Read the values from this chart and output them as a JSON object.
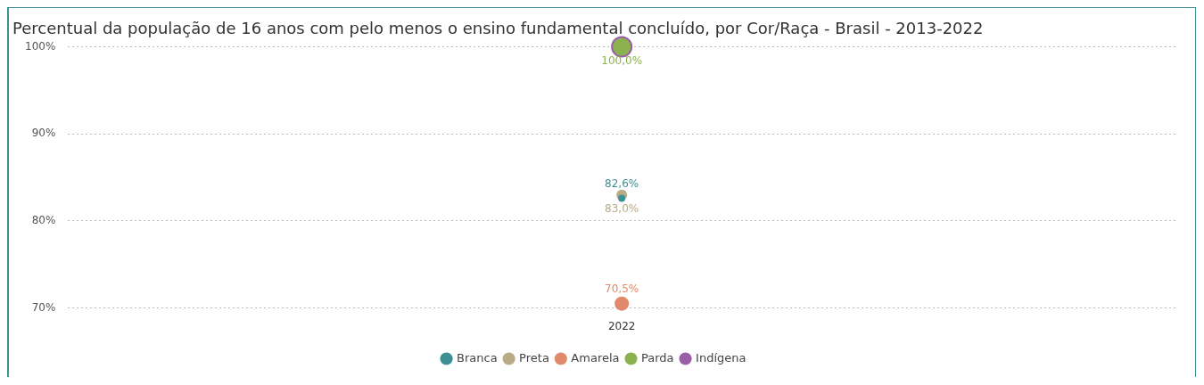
{
  "chart_data": {
    "type": "scatter",
    "title": "Percentual da população de 16 anos com pelo menos o ensino fundamental concluído, por Cor/Raça - Brasil - 2013-2022",
    "categories": [
      "2022"
    ],
    "series": [
      {
        "name": "Branca",
        "color": "#3e8f94",
        "values": [
          82.6
        ],
        "value_labels": [
          "82,6%"
        ]
      },
      {
        "name": "Preta",
        "color": "#b9ab86",
        "values": [
          83.0
        ],
        "value_labels": [
          "83,0%"
        ]
      },
      {
        "name": "Amarela",
        "color": "#e08a6b",
        "values": [
          70.5
        ],
        "value_labels": [
          "70,5%"
        ]
      },
      {
        "name": "Parda",
        "color": "#8cb24f",
        "values": [
          100.0
        ],
        "value_labels": [
          "100,0%"
        ]
      },
      {
        "name": "Indígena",
        "color": "#9b5fa8",
        "values": [
          100.0
        ],
        "value_labels": [
          null
        ]
      }
    ],
    "ylim": [
      70,
      100
    ],
    "yticks": [
      {
        "value": 70,
        "label": "70%"
      },
      {
        "value": 80,
        "label": "80%"
      },
      {
        "value": 90,
        "label": "90%"
      },
      {
        "value": 100,
        "label": "100%"
      }
    ],
    "grid": "y",
    "legend": "bottom",
    "marker": "circle"
  }
}
